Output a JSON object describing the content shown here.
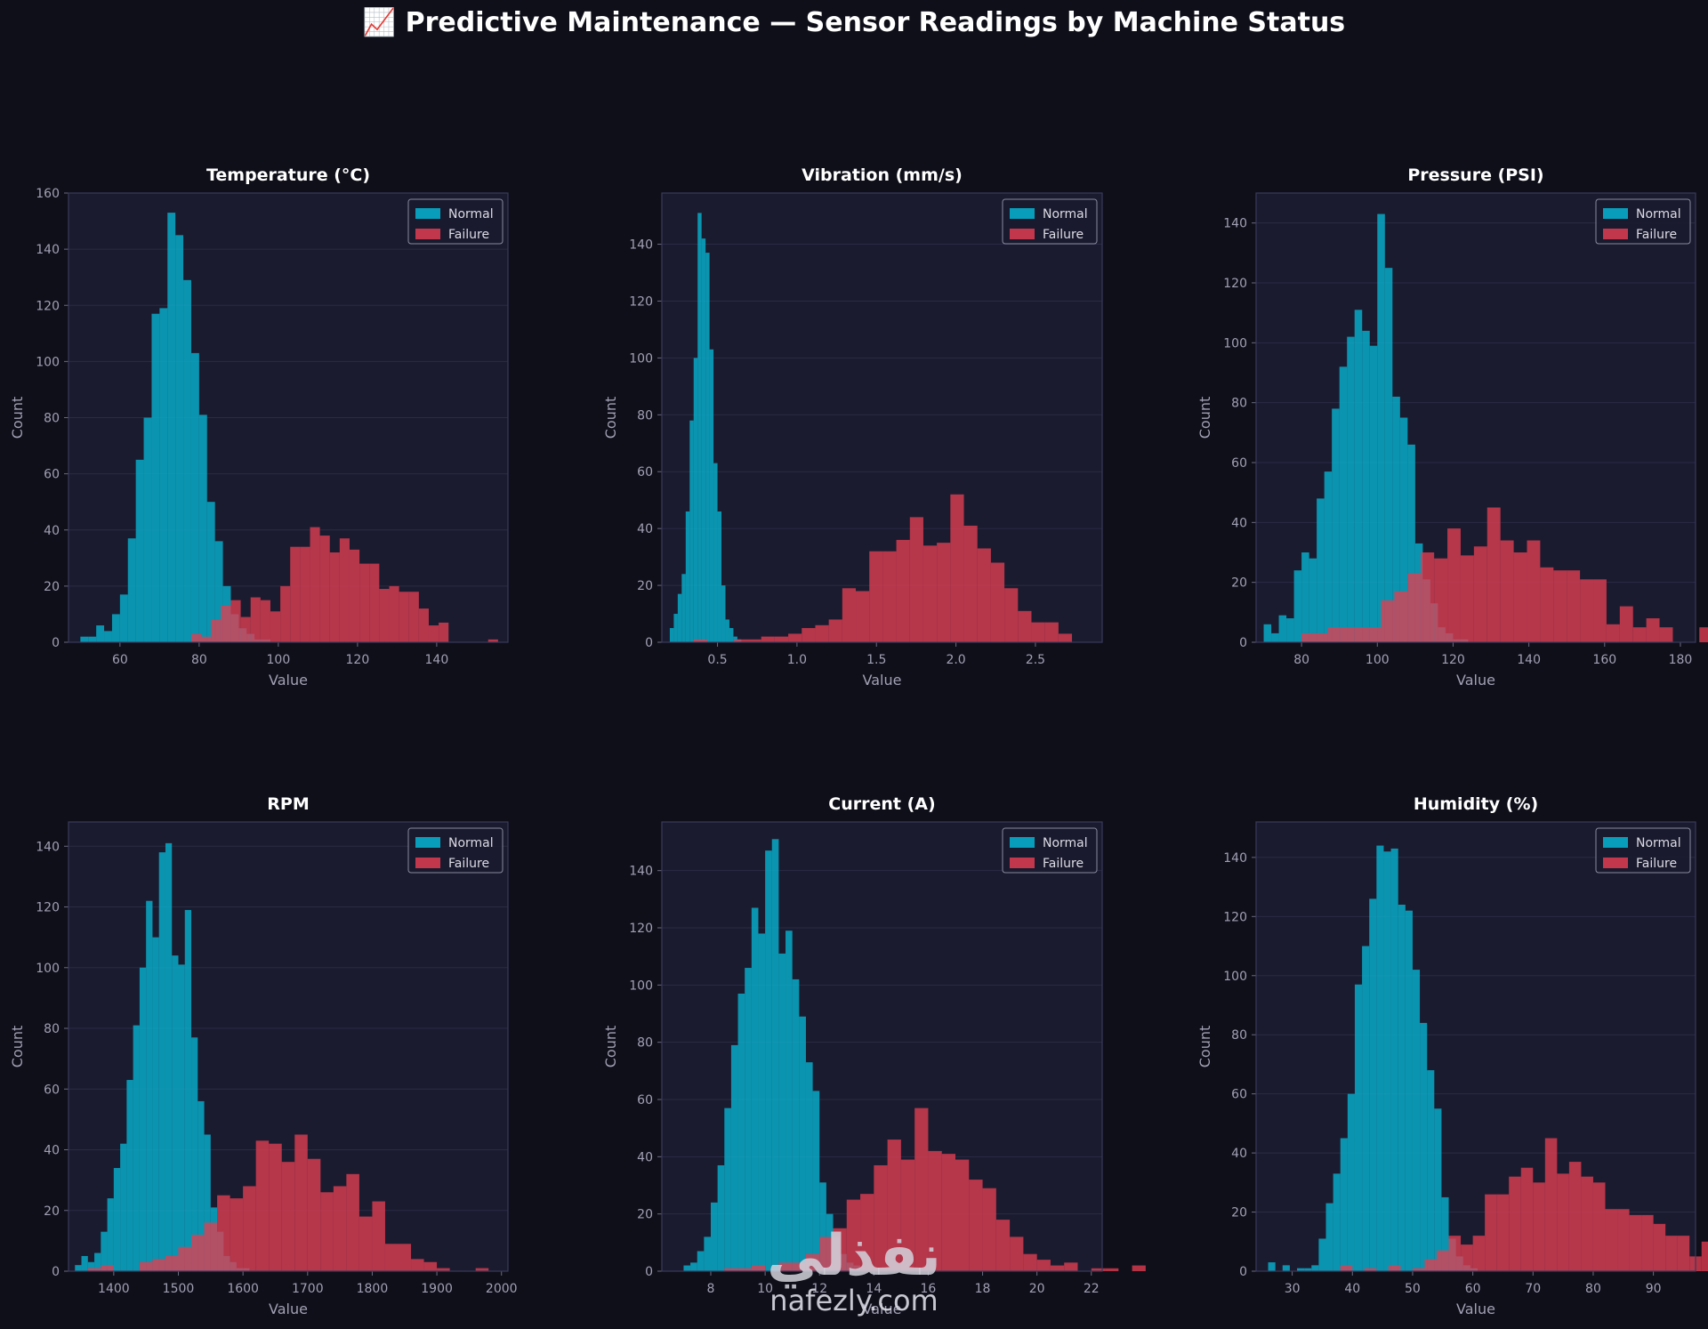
{
  "title": "📈 Predictive Maintenance — Sensor Readings by Machine Status",
  "colors": {
    "normal": "#06b6d4",
    "failure": "#e23d52",
    "plot_bg": "#1b1b2f",
    "page_bg": "#0f0f1a",
    "grid": "#2a2a44",
    "text": "#a0a0b4"
  },
  "watermark": {
    "arabic": "نفذلي",
    "latin": "nafezly.com"
  },
  "chart_data": [
    {
      "type": "histogram",
      "title": "Temperature (°C)",
      "xlabel": "Value",
      "ylabel": "Count",
      "xlim": [
        47,
        158
      ],
      "ylim": [
        0,
        160
      ],
      "xticks": [
        60,
        80,
        100,
        120,
        140
      ],
      "yticks": [
        0,
        20,
        40,
        60,
        80,
        100,
        120,
        140,
        160
      ],
      "legend": "upper right",
      "grid": true,
      "series": [
        {
          "name": "Normal",
          "start": 50,
          "bin": 2,
          "counts": [
            2,
            2,
            6,
            4,
            10,
            17,
            37,
            65,
            80,
            117,
            119,
            153,
            145,
            129,
            103,
            81,
            50,
            36,
            20,
            10,
            5,
            3,
            1,
            1
          ]
        },
        {
          "name": "Failure",
          "start": 78,
          "bin": 2.5,
          "counts": [
            3,
            2,
            8,
            13,
            15,
            9,
            16,
            15,
            11,
            20,
            34,
            34,
            41,
            38,
            32,
            37,
            33,
            28,
            28,
            19,
            20,
            18,
            18,
            12,
            6,
            7,
            0,
            0,
            0,
            0,
            1
          ]
        }
      ]
    },
    {
      "type": "histogram",
      "title": "Vibration (mm/s)",
      "xlabel": "Value",
      "ylabel": "Count",
      "xlim": [
        0.15,
        2.92
      ],
      "ylim": [
        0,
        158
      ],
      "xticks": [
        0.5,
        1.0,
        1.5,
        2.0,
        2.5
      ],
      "xticklabels": [
        "0.5",
        "1.0",
        "1.5",
        "2.0",
        "2.5"
      ],
      "yticks": [
        0,
        20,
        40,
        60,
        80,
        100,
        120,
        140
      ],
      "legend": "upper right",
      "grid": true,
      "series": [
        {
          "name": "Normal",
          "start": 0.2,
          "bin": 0.025,
          "counts": [
            5,
            10,
            17,
            24,
            46,
            78,
            100,
            151,
            142,
            137,
            103,
            63,
            46,
            20,
            8,
            5,
            2,
            1
          ]
        },
        {
          "name": "Failure",
          "start": 0.35,
          "bin": 0.085,
          "counts": [
            1,
            0,
            0,
            1,
            1,
            2,
            2,
            3,
            5,
            6,
            8,
            19,
            18,
            32,
            32,
            36,
            44,
            34,
            35,
            52,
            41,
            33,
            28,
            19,
            11,
            7,
            7,
            3
          ]
        }
      ]
    },
    {
      "type": "histogram",
      "title": "Pressure (PSI)",
      "xlabel": "Value",
      "ylabel": "Count",
      "xlim": [
        68,
        184
      ],
      "ylim": [
        0,
        150
      ],
      "xticks": [
        80,
        100,
        120,
        140,
        160,
        180
      ],
      "yticks": [
        0,
        20,
        40,
        60,
        80,
        100,
        120,
        140
      ],
      "legend": "upper right",
      "grid": true,
      "series": [
        {
          "name": "Normal",
          "start": 70,
          "bin": 2,
          "counts": [
            6,
            3,
            9,
            8,
            24,
            30,
            28,
            48,
            57,
            78,
            92,
            102,
            111,
            104,
            99,
            143,
            125,
            82,
            75,
            66,
            33,
            21,
            13,
            5,
            3,
            1,
            1
          ]
        },
        {
          "name": "Failure",
          "start": 80,
          "bin": 3.5,
          "counts": [
            3,
            3,
            5,
            5,
            5,
            5,
            14,
            17,
            23,
            30,
            28,
            38,
            29,
            32,
            45,
            34,
            30,
            34,
            25,
            24,
            24,
            21,
            21,
            6,
            12,
            5,
            8,
            5,
            0,
            0,
            5
          ]
        }
      ]
    },
    {
      "type": "histogram",
      "title": "RPM",
      "xlabel": "Value",
      "ylabel": "Count",
      "xlim": [
        1330,
        2010
      ],
      "ylim": [
        0,
        148
      ],
      "xticks": [
        1400,
        1500,
        1600,
        1700,
        1800,
        1900,
        2000
      ],
      "yticks": [
        0,
        20,
        40,
        60,
        80,
        100,
        120,
        140
      ],
      "legend": "upper right",
      "grid": true,
      "series": [
        {
          "name": "Normal",
          "start": 1340,
          "bin": 10,
          "counts": [
            2,
            5,
            3,
            6,
            13,
            24,
            34,
            42,
            63,
            81,
            100,
            122,
            110,
            138,
            141,
            104,
            101,
            119,
            77,
            56,
            45,
            21,
            13,
            5,
            3,
            1,
            1
          ]
        },
        {
          "name": "Failure",
          "start": 1360,
          "bin": 20,
          "counts": [
            1,
            2,
            0,
            0,
            3,
            4,
            5,
            8,
            12,
            16,
            25,
            24,
            28,
            43,
            42,
            36,
            45,
            37,
            26,
            28,
            32,
            18,
            23,
            9,
            9,
            4,
            3,
            1,
            0,
            0,
            1
          ]
        }
      ]
    },
    {
      "type": "histogram",
      "title": "Current (A)",
      "xlabel": "Value",
      "ylabel": "Count",
      "xlim": [
        6.2,
        22.4
      ],
      "ylim": [
        0,
        157
      ],
      "xticks": [
        8,
        10,
        12,
        14,
        16,
        18,
        20,
        22
      ],
      "yticks": [
        0,
        20,
        40,
        60,
        80,
        100,
        120,
        140
      ],
      "legend": "upper right",
      "grid": true,
      "series": [
        {
          "name": "Normal",
          "start": 7.0,
          "bin": 0.25,
          "counts": [
            2,
            3,
            7,
            12,
            24,
            37,
            57,
            79,
            97,
            106,
            127,
            118,
            147,
            151,
            111,
            119,
            102,
            89,
            73,
            63,
            31,
            20,
            12,
            6,
            3,
            2
          ]
        },
        {
          "name": "Failure",
          "start": 8.5,
          "bin": 0.5,
          "counts": [
            1,
            1,
            2,
            0,
            3,
            3,
            6,
            12,
            15,
            25,
            27,
            37,
            46,
            39,
            57,
            42,
            41,
            39,
            32,
            29,
            18,
            12,
            6,
            4,
            2,
            3,
            0,
            1,
            1,
            0,
            2
          ]
        }
      ]
    },
    {
      "type": "histogram",
      "title": "Humidity (%)",
      "xlabel": "Value",
      "ylabel": "Count",
      "xlim": [
        24,
        97
      ],
      "ylim": [
        0,
        152
      ],
      "xticks": [
        30,
        40,
        50,
        60,
        70,
        80,
        90
      ],
      "yticks": [
        0,
        20,
        40,
        60,
        80,
        100,
        120,
        140
      ],
      "legend": "upper right",
      "grid": true,
      "series": [
        {
          "name": "Normal",
          "start": 26,
          "bin": 1.2,
          "counts": [
            3,
            0,
            2,
            0,
            1,
            1,
            2,
            11,
            23,
            33,
            45,
            60,
            97,
            110,
            126,
            144,
            142,
            143,
            124,
            122,
            102,
            84,
            68,
            55,
            25,
            11,
            5,
            2,
            1
          ]
        },
        {
          "name": "Failure",
          "start": 38,
          "bin": 2.0,
          "counts": [
            2,
            0,
            1,
            0,
            2,
            0,
            1,
            4,
            7,
            12,
            9,
            12,
            26,
            26,
            32,
            35,
            30,
            45,
            33,
            37,
            32,
            30,
            21,
            21,
            19,
            19,
            16,
            12,
            12,
            5,
            10
          ]
        }
      ]
    }
  ]
}
